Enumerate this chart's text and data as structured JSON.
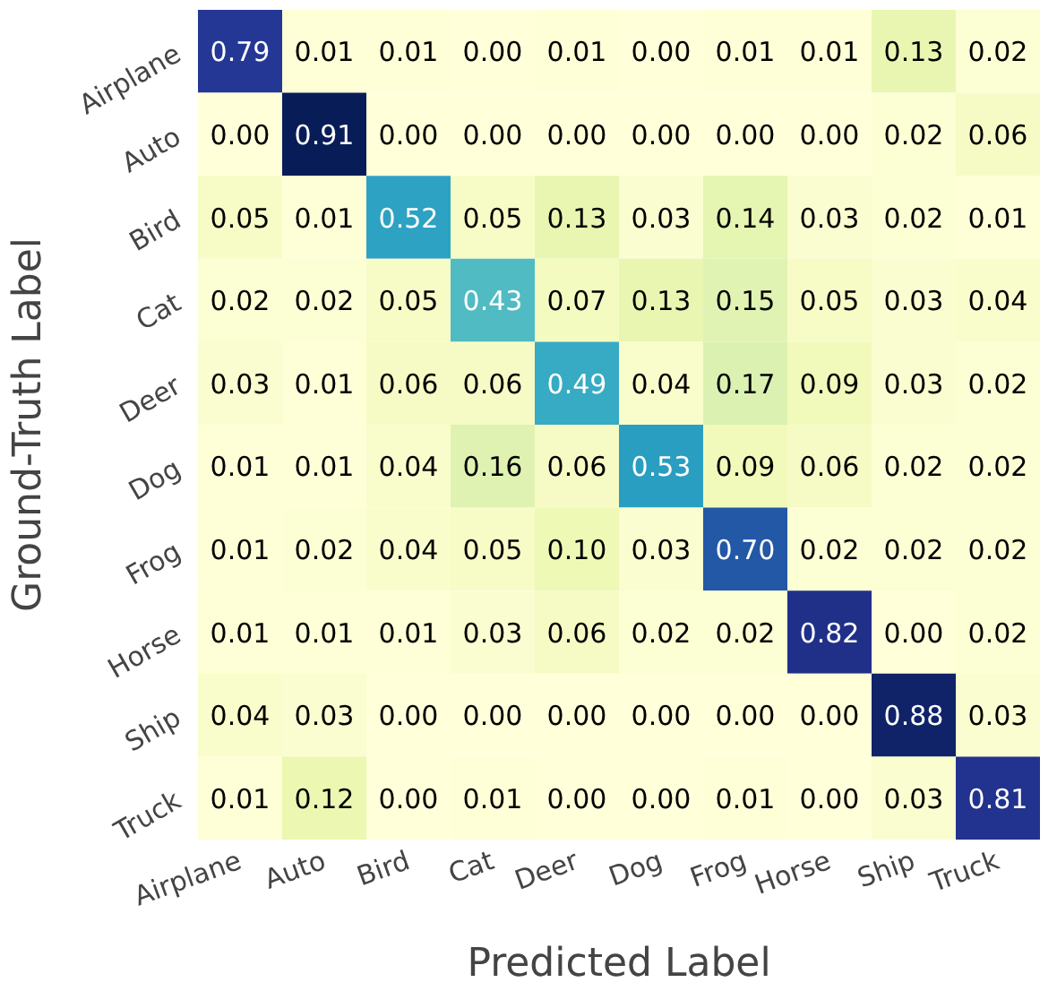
{
  "chart_data": {
    "type": "heatmap",
    "xlabel": "Predicted Label",
    "ylabel": "Ground-Truth Label",
    "categories": [
      "Airplane",
      "Auto",
      "Bird",
      "Cat",
      "Deer",
      "Dog",
      "Frog",
      "Horse",
      "Ship",
      "Truck"
    ],
    "y_categories": [
      "Airplane",
      "Auto",
      "Bird",
      "Cat",
      "Deer",
      "Dog",
      "Frog",
      "Horse",
      "Ship",
      "Truck"
    ],
    "cells": [
      [
        0.79,
        0.01,
        0.01,
        0.0,
        0.01,
        0.0,
        0.01,
        0.01,
        0.13,
        0.02
      ],
      [
        0.0,
        0.91,
        0.0,
        0.0,
        0.0,
        0.0,
        0.0,
        0.0,
        0.02,
        0.06
      ],
      [
        0.05,
        0.01,
        0.52,
        0.05,
        0.13,
        0.03,
        0.14,
        0.03,
        0.02,
        0.01
      ],
      [
        0.02,
        0.02,
        0.05,
        0.43,
        0.07,
        0.13,
        0.15,
        0.05,
        0.03,
        0.04
      ],
      [
        0.03,
        0.01,
        0.06,
        0.06,
        0.49,
        0.04,
        0.17,
        0.09,
        0.03,
        0.02
      ],
      [
        0.01,
        0.01,
        0.04,
        0.16,
        0.06,
        0.53,
        0.09,
        0.06,
        0.02,
        0.02
      ],
      [
        0.01,
        0.02,
        0.04,
        0.05,
        0.1,
        0.03,
        0.7,
        0.02,
        0.02,
        0.02
      ],
      [
        0.01,
        0.01,
        0.01,
        0.03,
        0.06,
        0.02,
        0.02,
        0.82,
        0.0,
        0.02
      ],
      [
        0.04,
        0.03,
        0.0,
        0.0,
        0.0,
        0.0,
        0.0,
        0.0,
        0.88,
        0.03
      ],
      [
        0.01,
        0.12,
        0.0,
        0.01,
        0.0,
        0.0,
        0.01,
        0.0,
        0.03,
        0.81
      ]
    ],
    "cell_labels": [
      [
        "0.79",
        "0.01",
        "0.01",
        "0.00",
        "0.01",
        "0.00",
        "0.01",
        "0.01",
        "0.13",
        "0.02"
      ],
      [
        "0.00",
        "0.91",
        "0.00",
        "0.00",
        "0.00",
        "0.00",
        "0.00",
        "0.00",
        "0.02",
        "0.06"
      ],
      [
        "0.05",
        "0.01",
        "0.52",
        "0.05",
        "0.13",
        "0.03",
        "0.14",
        "0.03",
        "0.02",
        "0.01"
      ],
      [
        "0.02",
        "0.02",
        "0.05",
        "0.43",
        "0.07",
        "0.13",
        "0.15",
        "0.05",
        "0.03",
        "0.04"
      ],
      [
        "0.03",
        "0.01",
        "0.06",
        "0.06",
        "0.49",
        "0.04",
        "0.17",
        "0.09",
        "0.03",
        "0.02"
      ],
      [
        "0.01",
        "0.01",
        "0.04",
        "0.16",
        "0.06",
        "0.53",
        "0.09",
        "0.06",
        "0.02",
        "0.02"
      ],
      [
        "0.01",
        "0.02",
        "0.04",
        "0.05",
        "0.10",
        "0.03",
        "0.70",
        "0.02",
        "0.02",
        "0.02"
      ],
      [
        "0.01",
        "0.01",
        "0.01",
        "0.03",
        "0.06",
        "0.02",
        "0.02",
        "0.82",
        "0.00",
        "0.02"
      ],
      [
        "0.04",
        "0.03",
        "0.00",
        "0.00",
        "0.00",
        "0.00",
        "0.00",
        "0.00",
        "0.88",
        "0.03"
      ],
      [
        "0.01",
        "0.12",
        "0.00",
        "0.01",
        "0.00",
        "0.00",
        "0.01",
        "0.00",
        "0.03",
        "0.81"
      ]
    ]
  }
}
